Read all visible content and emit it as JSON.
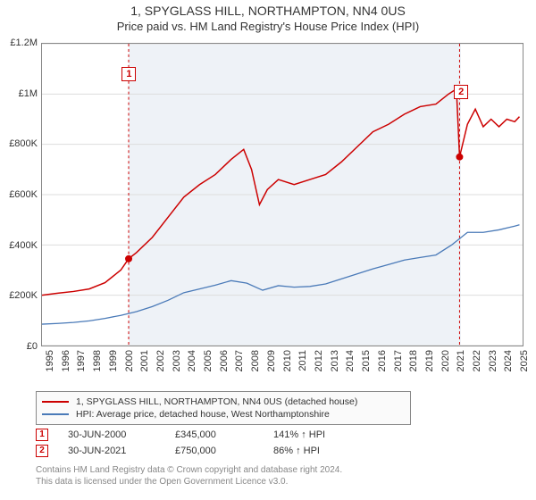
{
  "chart": {
    "title_main": "1, SPYGLASS HILL, NORTHAMPTON, NN4 0US",
    "title_sub": "Price paid vs. HM Land Registry's House Price Index (HPI)",
    "background_color": "#ffffff",
    "plot_shade_color": "#eef2f7",
    "border_color": "#888888",
    "grid_color": "#dddddd",
    "y_axis": {
      "min": 0,
      "max": 1200000,
      "tick_step": 200000,
      "tick_labels": [
        "£0",
        "£200K",
        "£400K",
        "£600K",
        "£800K",
        "£1M",
        "£1.2M"
      ]
    },
    "x_axis": {
      "min": 1995,
      "max": 2025.5,
      "ticks": [
        1995,
        1996,
        1997,
        1998,
        1999,
        2000,
        2001,
        2002,
        2003,
        2004,
        2005,
        2006,
        2007,
        2008,
        2009,
        2010,
        2011,
        2012,
        2013,
        2014,
        2015,
        2016,
        2017,
        2018,
        2019,
        2020,
        2021,
        2022,
        2023,
        2024,
        2025
      ]
    },
    "shade_ranges": [
      {
        "from": 2000.5,
        "to": 2021.5
      }
    ],
    "vlines": [
      {
        "x": 2000.5,
        "color": "#cc0000",
        "dash": "3,3",
        "width": 1
      },
      {
        "x": 2021.5,
        "color": "#cc0000",
        "dash": "3,3",
        "width": 1
      }
    ],
    "markers": [
      {
        "id": "1",
        "x": 2000.5,
        "y_box": 1080000,
        "y_dot": 345000,
        "dot_color": "#cc0000"
      },
      {
        "id": "2",
        "x": 2021.5,
        "y_box": 1010000,
        "y_dot": 750000,
        "dot_color": "#cc0000"
      }
    ],
    "series": [
      {
        "name": "price_paid",
        "label": "1, SPYGLASS HILL, NORTHAMPTON, NN4 0US (detached house)",
        "color": "#cc0000",
        "width": 1.5,
        "points": [
          [
            1995,
            200000
          ],
          [
            1996,
            208000
          ],
          [
            1997,
            215000
          ],
          [
            1998,
            225000
          ],
          [
            1999,
            250000
          ],
          [
            2000,
            300000
          ],
          [
            2000.5,
            345000
          ],
          [
            2001,
            370000
          ],
          [
            2002,
            430000
          ],
          [
            2003,
            510000
          ],
          [
            2004,
            590000
          ],
          [
            2005,
            640000
          ],
          [
            2006,
            680000
          ],
          [
            2007,
            740000
          ],
          [
            2007.8,
            780000
          ],
          [
            2008.3,
            700000
          ],
          [
            2008.8,
            560000
          ],
          [
            2009.3,
            620000
          ],
          [
            2010,
            660000
          ],
          [
            2011,
            640000
          ],
          [
            2012,
            660000
          ],
          [
            2013,
            680000
          ],
          [
            2014,
            730000
          ],
          [
            2015,
            790000
          ],
          [
            2016,
            850000
          ],
          [
            2017,
            880000
          ],
          [
            2018,
            920000
          ],
          [
            2019,
            950000
          ],
          [
            2020,
            960000
          ],
          [
            2020.8,
            1000000
          ],
          [
            2021.3,
            1020000
          ],
          [
            2021.5,
            750000
          ],
          [
            2022,
            880000
          ],
          [
            2022.5,
            940000
          ],
          [
            2023,
            870000
          ],
          [
            2023.5,
            900000
          ],
          [
            2024,
            870000
          ],
          [
            2024.5,
            900000
          ],
          [
            2025,
            890000
          ],
          [
            2025.3,
            910000
          ]
        ]
      },
      {
        "name": "hpi",
        "label": "HPI: Average price, detached house, West Northamptonshire",
        "color": "#4a7ab8",
        "width": 1.3,
        "points": [
          [
            1995,
            85000
          ],
          [
            1996,
            88000
          ],
          [
            1997,
            92000
          ],
          [
            1998,
            98000
          ],
          [
            1999,
            108000
          ],
          [
            2000,
            120000
          ],
          [
            2001,
            135000
          ],
          [
            2002,
            155000
          ],
          [
            2003,
            180000
          ],
          [
            2004,
            210000
          ],
          [
            2005,
            225000
          ],
          [
            2006,
            240000
          ],
          [
            2007,
            258000
          ],
          [
            2008,
            248000
          ],
          [
            2009,
            220000
          ],
          [
            2010,
            238000
          ],
          [
            2011,
            232000
          ],
          [
            2012,
            235000
          ],
          [
            2013,
            245000
          ],
          [
            2014,
            265000
          ],
          [
            2015,
            285000
          ],
          [
            2016,
            305000
          ],
          [
            2017,
            322000
          ],
          [
            2018,
            340000
          ],
          [
            2019,
            350000
          ],
          [
            2020,
            360000
          ],
          [
            2021,
            400000
          ],
          [
            2022,
            450000
          ],
          [
            2023,
            450000
          ],
          [
            2024,
            460000
          ],
          [
            2025,
            475000
          ],
          [
            2025.3,
            480000
          ]
        ]
      }
    ],
    "legend": {
      "border_color": "#888888",
      "bg_color": "#fafafa"
    },
    "transactions": [
      {
        "marker": "1",
        "date": "30-JUN-2000",
        "price": "£345,000",
        "pct": "141% ↑ HPI"
      },
      {
        "marker": "2",
        "date": "30-JUN-2021",
        "price": "£750,000",
        "pct": "86% ↑ HPI"
      }
    ],
    "footer": {
      "line1": "Contains HM Land Registry data © Crown copyright and database right 2024.",
      "line2": "This data is licensed under the Open Government Licence v3.0."
    },
    "title_fontsize": 14,
    "subtitle_fontsize": 13,
    "axis_fontsize": 11,
    "legend_fontsize": 10.5,
    "footer_fontsize": 10
  }
}
